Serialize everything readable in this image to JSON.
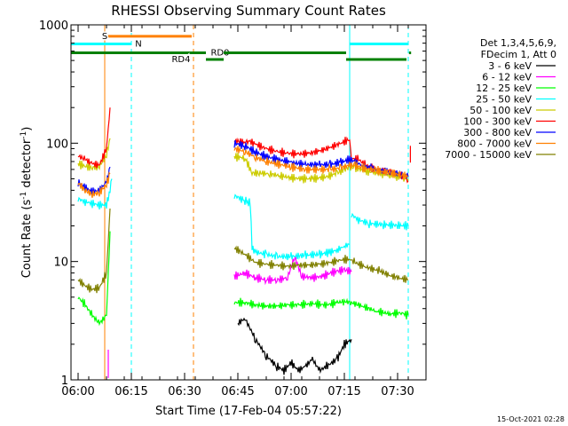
{
  "chart_data": {
    "type": "line",
    "title": "RHESSI Observing Summary Count Rates",
    "xlabel": "Start Time (17-Feb-04 05:57:22)",
    "ylabel_parts": [
      "Count Rate (s",
      "-1",
      " detector",
      "-1",
      ")"
    ],
    "yscale": "log",
    "ylim": [
      1,
      1000
    ],
    "xlim_minutes": [
      -2,
      98
    ],
    "x_ticks": [
      {
        "t": 0,
        "label": "06:00"
      },
      {
        "t": 15,
        "label": "06:15"
      },
      {
        "t": 30,
        "label": "06:30"
      },
      {
        "t": 45,
        "label": "06:45"
      },
      {
        "t": 60,
        "label": "07:00"
      },
      {
        "t": 75,
        "label": "07:15"
      },
      {
        "t": 90,
        "label": "07:30"
      }
    ],
    "y_ticks": [
      {
        "v": 1,
        "label": "1"
      },
      {
        "v": 10,
        "label": "10"
      },
      {
        "v": 100,
        "label": "100"
      },
      {
        "v": 1000,
        "label": "1000"
      }
    ],
    "legend": {
      "header": [
        "Det 1,3,4,5,6,9,",
        "FDecim 1, Att 0"
      ],
      "placement": "right"
    },
    "series": [
      {
        "name": "3 - 6 keV",
        "color": "#000000",
        "segments": [
          [
            [
              45,
              3
            ],
            [
              47,
              3.3
            ],
            [
              50,
              2.2
            ],
            [
              53,
              1.6
            ],
            [
              56,
              1.3
            ],
            [
              58,
              1.2
            ],
            [
              60,
              1.4
            ],
            [
              62,
              1.2
            ],
            [
              64,
              1.3
            ],
            [
              66,
              1.5
            ],
            [
              68,
              1.2
            ],
            [
              70,
              1.3
            ],
            [
              73,
              1.5
            ],
            [
              75,
              2
            ],
            [
              77,
              2.2
            ]
          ]
        ]
      },
      {
        "name": "6 - 12 keV",
        "color": "#ff00ff",
        "segments": [
          [
            [
              8.5,
              1
            ],
            [
              8.5,
              1.8
            ]
          ],
          [
            [
              44,
              7.5
            ],
            [
              47,
              8
            ],
            [
              50,
              7.3
            ],
            [
              53,
              7
            ],
            [
              56,
              7
            ],
            [
              59,
              7.3
            ],
            [
              61,
              11
            ],
            [
              63,
              7.5
            ],
            [
              66,
              7.3
            ],
            [
              69,
              7.5
            ],
            [
              71,
              8
            ],
            [
              73,
              8.3
            ],
            [
              75,
              8.5
            ],
            [
              77,
              8.2
            ]
          ]
        ]
      },
      {
        "name": "12 - 25 keV",
        "color": "#00ff00",
        "segments": [
          [
            [
              0,
              5
            ],
            [
              2,
              4.3
            ],
            [
              4,
              3.5
            ],
            [
              6,
              3
            ],
            [
              8,
              3.5
            ],
            [
              9,
              18
            ]
          ],
          [
            [
              44,
              4.5
            ],
            [
              47,
              4.5
            ],
            [
              50,
              4.3
            ],
            [
              53,
              4.2
            ],
            [
              56,
              4.2
            ],
            [
              59,
              4.3
            ],
            [
              62,
              4.3
            ],
            [
              66,
              4.4
            ],
            [
              70,
              4.3
            ],
            [
              73,
              4.5
            ],
            [
              75,
              4.6
            ],
            [
              77,
              4.5
            ],
            [
              80,
              4.2
            ],
            [
              84,
              3.8
            ],
            [
              88,
              3.6
            ],
            [
              91,
              3.7
            ],
            [
              93,
              3.5
            ]
          ]
        ]
      },
      {
        "name": "25 - 50 keV",
        "color": "#00ffff",
        "segments": [
          [
            [
              0,
              34
            ],
            [
              2,
              32
            ],
            [
              4,
              31
            ],
            [
              6,
              30
            ],
            [
              8,
              30
            ],
            [
              9,
              40
            ],
            [
              9.5,
              50
            ]
          ],
          [
            [
              44,
              36
            ],
            [
              46,
              34
            ],
            [
              47,
              33
            ],
            [
              48,
              32
            ],
            [
              48.5,
              31
            ],
            [
              49,
              13
            ],
            [
              50,
              12
            ],
            [
              53,
              11.5
            ],
            [
              56,
              11
            ],
            [
              60,
              11
            ],
            [
              64,
              11.3
            ],
            [
              68,
              11.5
            ],
            [
              71,
              12
            ],
            [
              73,
              12.5
            ],
            [
              75,
              13.5
            ],
            [
              76.5,
              14
            ]
          ],
          [
            [
              77,
              25
            ],
            [
              79,
              22.5
            ],
            [
              82,
              21
            ],
            [
              86,
              20.5
            ],
            [
              90,
              20.2
            ],
            [
              93,
              20
            ]
          ]
        ]
      },
      {
        "name": "50 - 100 keV",
        "color": "#cccc00",
        "segments": [
          [
            [
              0,
              67
            ],
            [
              2,
              64
            ],
            [
              4,
              62
            ],
            [
              6,
              64
            ],
            [
              8,
              80
            ],
            [
              9,
              110
            ]
          ],
          [
            [
              44,
              77
            ],
            [
              47,
              75
            ],
            [
              49,
              56
            ],
            [
              51,
              56
            ],
            [
              54,
              55
            ],
            [
              57,
              53
            ],
            [
              60,
              51
            ],
            [
              63,
              50
            ],
            [
              66,
              50
            ],
            [
              70,
              52
            ],
            [
              73,
              56
            ],
            [
              75,
              60
            ],
            [
              76.5,
              63
            ],
            [
              78,
              62
            ],
            [
              81,
              58
            ],
            [
              85,
              56
            ],
            [
              89,
              53
            ],
            [
              92,
              51
            ],
            [
              93,
              50
            ]
          ]
        ]
      },
      {
        "name": "100 - 300 keV",
        "color": "#ff0000",
        "segments": [
          [
            [
              0,
              78
            ],
            [
              2,
              73
            ],
            [
              4,
              67
            ],
            [
              6,
              65
            ],
            [
              8,
              90
            ],
            [
              9,
              200
            ]
          ],
          [
            [
              44,
              105
            ],
            [
              47,
              102
            ],
            [
              48,
              105
            ],
            [
              50,
              98
            ],
            [
              53,
              90
            ],
            [
              56,
              85
            ],
            [
              59,
              82
            ],
            [
              62,
              81
            ],
            [
              65,
              82
            ],
            [
              68,
              86
            ],
            [
              71,
              92
            ],
            [
              74,
              100
            ],
            [
              76.5,
              108
            ],
            [
              77,
              74
            ],
            [
              79,
              73
            ],
            [
              81,
              65
            ],
            [
              84,
              60
            ],
            [
              87,
              58
            ],
            [
              90,
              55
            ],
            [
              92,
              52
            ],
            [
              93,
              48
            ]
          ],
          [
            [
              93.6,
              70
            ],
            [
              93.6,
              95
            ]
          ]
        ]
      },
      {
        "name": "300 - 800 keV",
        "color": "#0000ff",
        "segments": [
          [
            [
              0,
              47
            ],
            [
              2,
              42
            ],
            [
              4,
              39
            ],
            [
              6,
              40
            ],
            [
              8,
              47
            ],
            [
              9,
              63
            ]
          ],
          [
            [
              44,
              100
            ],
            [
              47,
              95
            ],
            [
              50,
              84
            ],
            [
              53,
              77
            ],
            [
              56,
              73
            ],
            [
              60,
              69
            ],
            [
              64,
              66
            ],
            [
              68,
              66
            ],
            [
              71,
              66
            ],
            [
              74,
              69
            ],
            [
              76.5,
              73
            ],
            [
              78,
              70
            ],
            [
              80,
              65
            ],
            [
              84,
              60
            ],
            [
              88,
              57
            ],
            [
              91,
              55
            ],
            [
              93,
              52
            ]
          ]
        ]
      },
      {
        "name": "800 - 7000 keV",
        "color": "#ff8000",
        "segments": [
          [
            [
              0,
              46
            ],
            [
              2,
              40
            ],
            [
              4,
              37
            ],
            [
              6,
              38
            ],
            [
              8,
              45
            ],
            [
              9,
              55
            ]
          ],
          [
            [
              44,
              90
            ],
            [
              47,
              85
            ],
            [
              50,
              76
            ],
            [
              53,
              70
            ],
            [
              56,
              67
            ],
            [
              60,
              63
            ],
            [
              64,
              60
            ],
            [
              68,
              60
            ],
            [
              71,
              60
            ],
            [
              74,
              62
            ],
            [
              76.5,
              65
            ],
            [
              78,
              65
            ],
            [
              80,
              62
            ],
            [
              84,
              59
            ],
            [
              88,
              56
            ],
            [
              91,
              54
            ],
            [
              93,
              52
            ]
          ]
        ]
      },
      {
        "name": "7000 - 15000 keV",
        "color": "#808000",
        "segments": [
          [
            [
              0,
              7
            ],
            [
              2,
              6.2
            ],
            [
              4,
              5.8
            ],
            [
              6,
              6
            ],
            [
              8,
              8
            ],
            [
              9,
              28
            ]
          ],
          [
            [
              44,
              13
            ],
            [
              47,
              11.5
            ],
            [
              50,
              9.8
            ],
            [
              53,
              9.5
            ],
            [
              56,
              9.3
            ],
            [
              59,
              9.1
            ],
            [
              62,
              9.3
            ],
            [
              65,
              9.3
            ],
            [
              68,
              9.5
            ],
            [
              71,
              9.8
            ],
            [
              74,
              10.3
            ],
            [
              76.5,
              10.5
            ],
            [
              78,
              9.8
            ],
            [
              81,
              9
            ],
            [
              85,
              8.3
            ],
            [
              88,
              7.6
            ],
            [
              91,
              7.2
            ],
            [
              93,
              7
            ]
          ]
        ]
      }
    ],
    "state_bars": [
      {
        "label": "S",
        "color": "#ff8000",
        "start": 7.5,
        "end": 32,
        "y": 800,
        "label_at": 7.5
      },
      {
        "label": "N",
        "color": "#00ffff",
        "start": -2,
        "end": 15,
        "y": 690,
        "label_at": 17
      },
      {
        "label": "N",
        "color": "#00ffff",
        "start": 76.5,
        "end": 93,
        "y": 690,
        "label_at": null
      },
      {
        "label": "RD0",
        "color": "#008000",
        "start": -2,
        "end": 36,
        "y": 580,
        "label_at": 40
      },
      {
        "label": "RD4",
        "color": "#008000",
        "start": 36,
        "end": 41,
        "y": 510,
        "label_at": 29
      },
      {
        "label": "RD0",
        "color": "#008000",
        "start": 41,
        "end": 75.5,
        "y": 580,
        "label_at": null
      },
      {
        "label": "RD4",
        "color": "#008000",
        "start": 75.5,
        "end": 92.5,
        "y": 510,
        "label_at": null
      },
      {
        "label": "RD0",
        "color": "#008000",
        "start": 93.2,
        "end": 93.8,
        "y": 580,
        "label_at": null
      }
    ],
    "vlines": [
      {
        "t": 7.5,
        "color": "#ff8000",
        "dash": false
      },
      {
        "t": 15,
        "color": "#00ffff",
        "dash": true
      },
      {
        "t": 32.5,
        "color": "#ff8000",
        "dash": true
      },
      {
        "t": 76.5,
        "color": "#00ffff",
        "dash": false
      },
      {
        "t": 93,
        "color": "#00ffff",
        "dash": true
      }
    ],
    "stamp": "15-Oct-2021 02:28"
  }
}
